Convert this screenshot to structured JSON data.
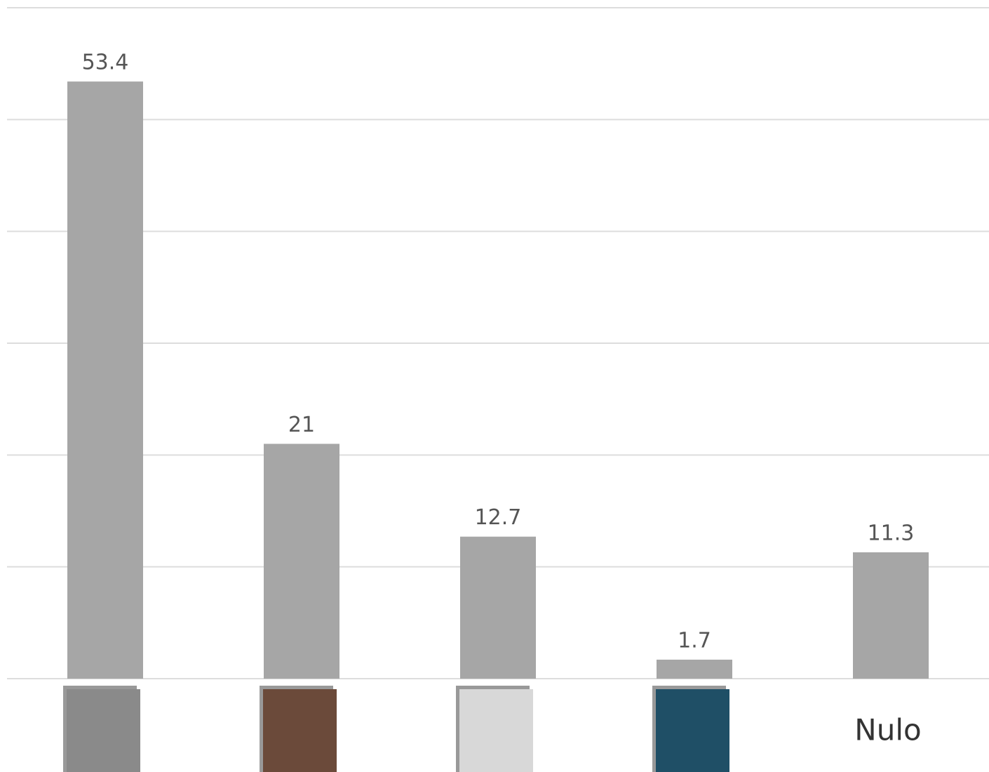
{
  "chart_data": {
    "type": "bar",
    "categories": [
      null,
      null,
      null,
      null,
      "Nulo"
    ],
    "values": [
      53.4,
      21,
      12.7,
      1.7,
      11.3
    ],
    "color": "#a6a6a6",
    "ylim": [
      0,
      60
    ],
    "yticks": [
      0,
      10,
      20,
      30,
      40,
      50,
      60
    ],
    "grid": true
  }
}
